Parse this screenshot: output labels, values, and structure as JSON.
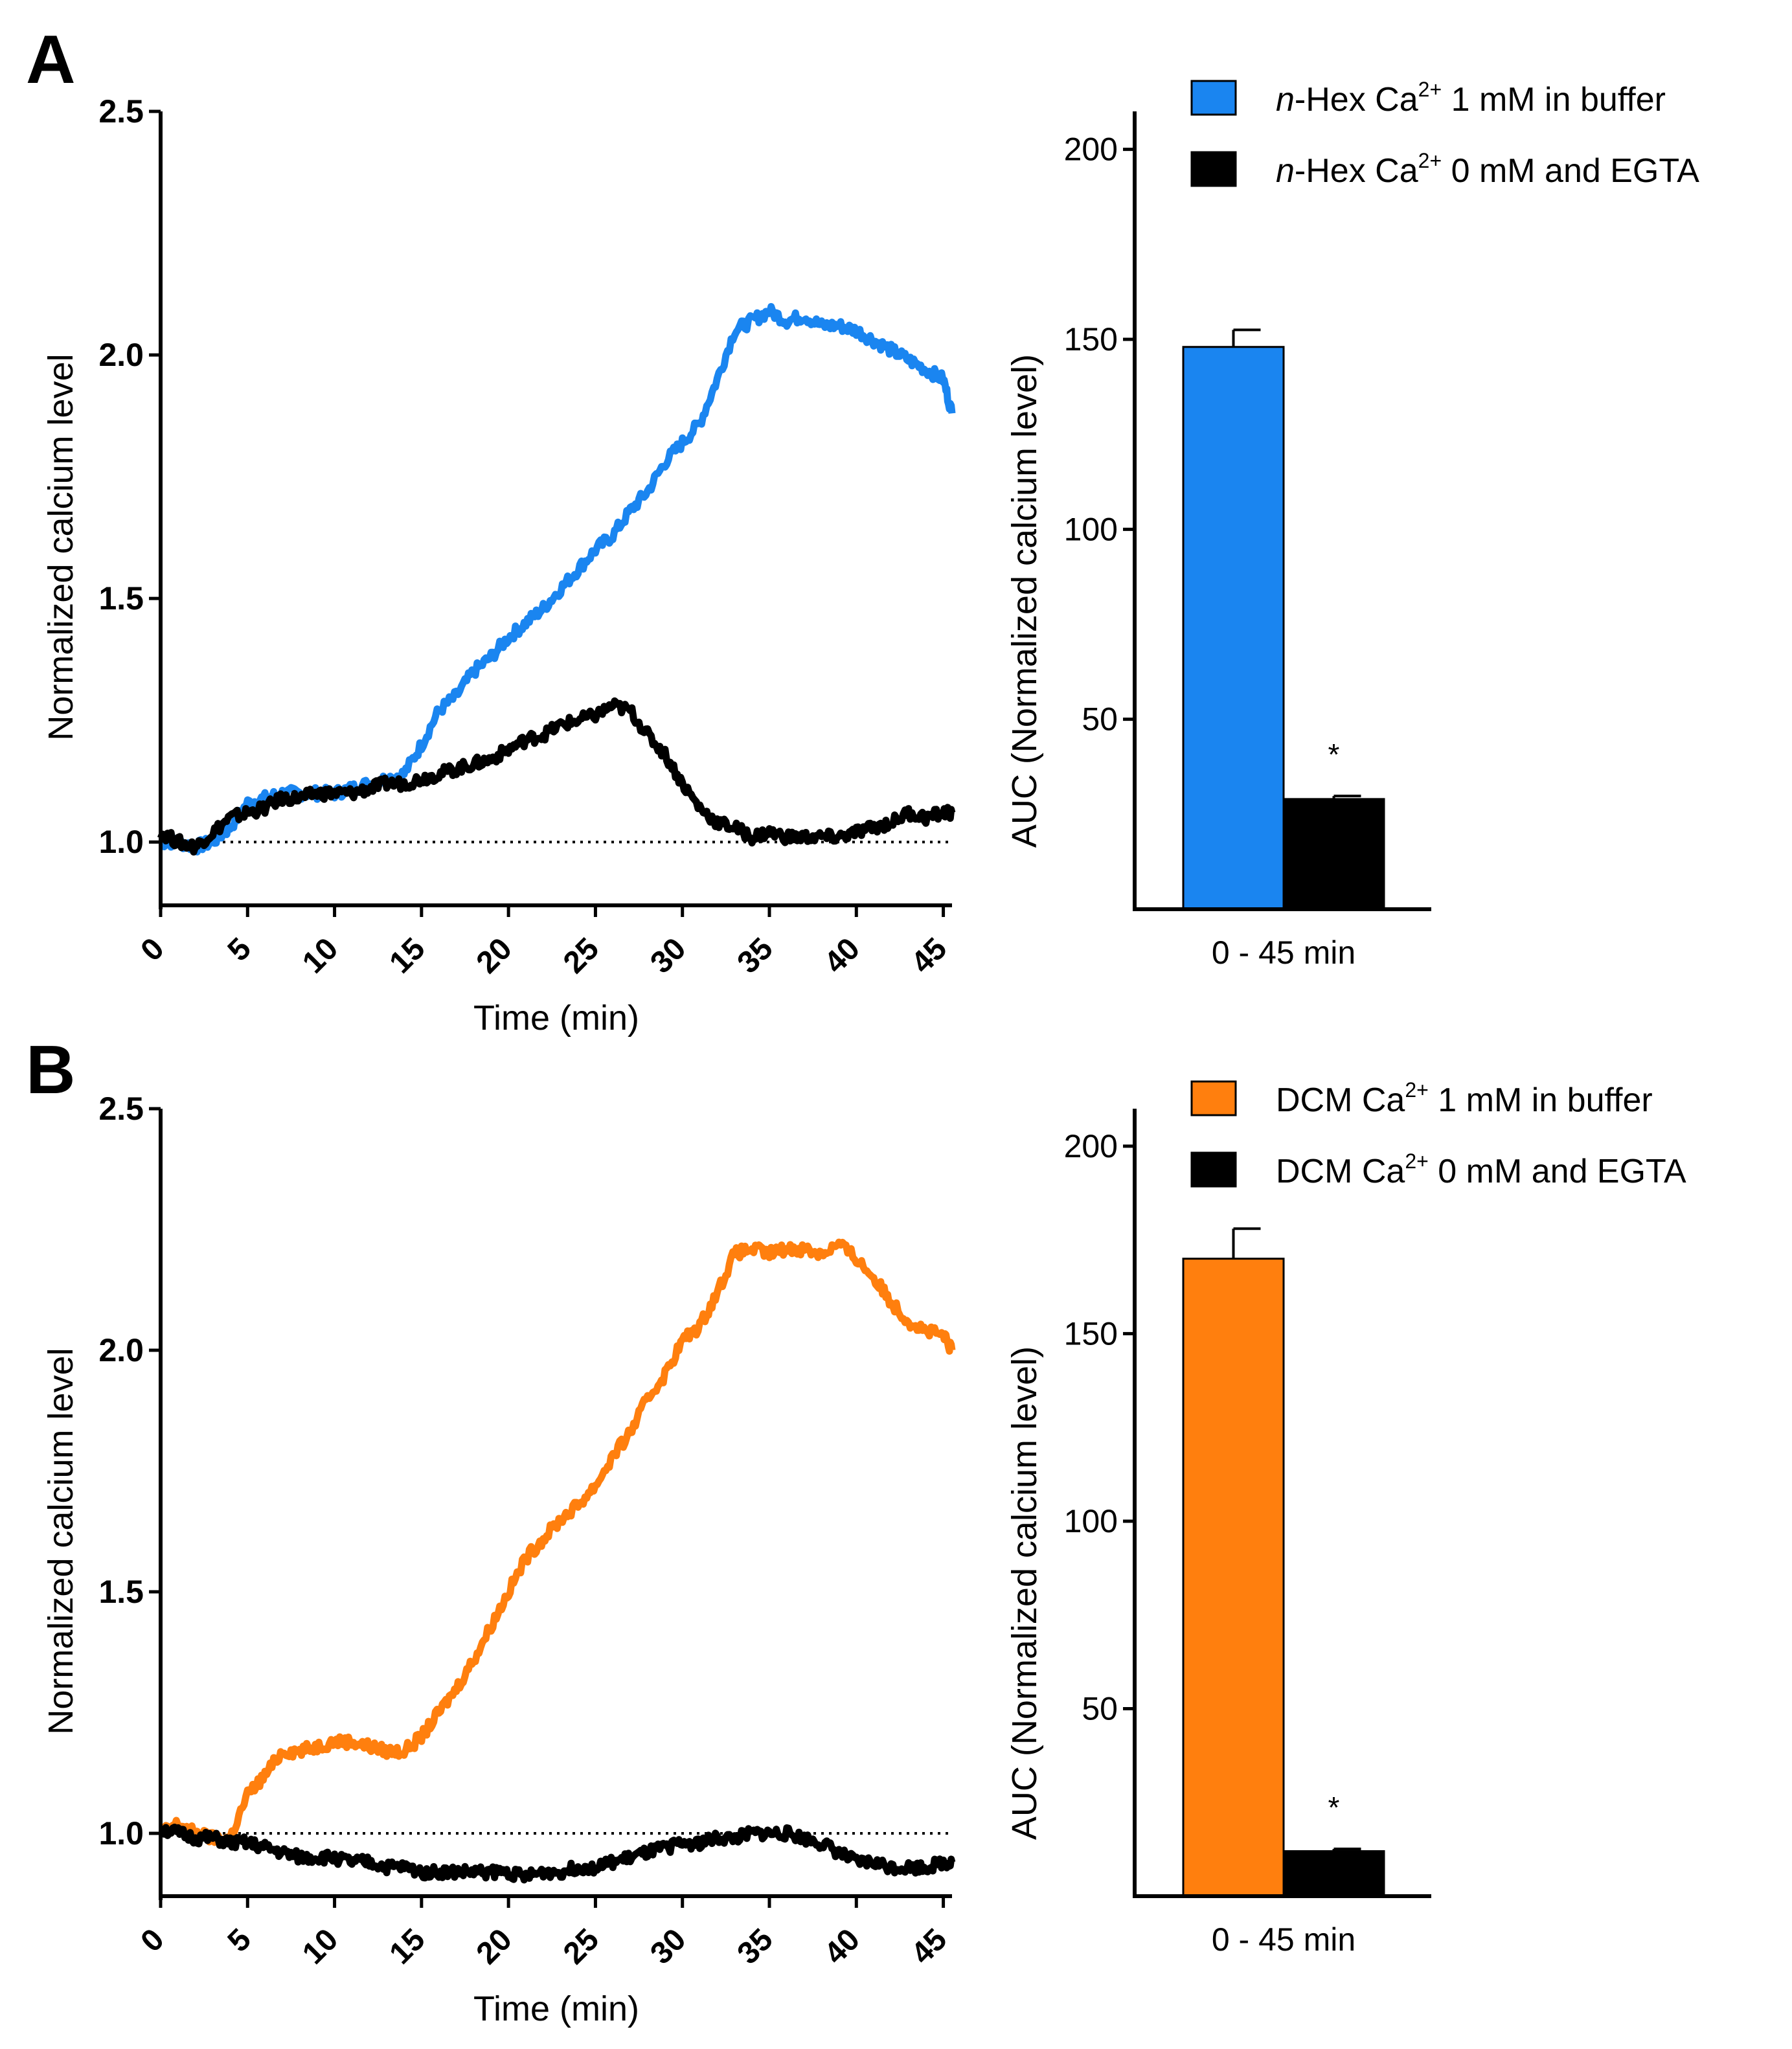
{
  "figure": {
    "panels": [
      {
        "letter": "A",
        "trace_ylabel": "Normalized calcium level",
        "trace_xlabel": "Time (min)",
        "auc_ylabel": "AUC  (Normalized calcium level)",
        "auc_xlabel": "0 - 45 min",
        "legend": [
          {
            "prefix_italic": "n",
            "text1": "-Hex Ca",
            "sup": "2+",
            "text2": " 1 mM in buffer"
          },
          {
            "prefix_italic": "n",
            "text1": "-Hex Ca",
            "sup": "2+",
            "text2": " 0 mM and EGTA"
          }
        ],
        "significance": "*"
      },
      {
        "letter": "B",
        "trace_ylabel": "Normalized calcium level",
        "trace_xlabel": "Time (min)",
        "auc_ylabel": "AUC  (Normalized calcium level)",
        "auc_xlabel": "0 - 45 min",
        "legend": [
          {
            "prefix_italic": "",
            "text1": "DCM Ca",
            "sup": "2+",
            "text2": " 1 mM in buffer"
          },
          {
            "prefix_italic": "",
            "text1": "DCM Ca",
            "sup": "2+",
            "text2": " 0 mM and EGTA"
          }
        ],
        "significance": "*"
      }
    ],
    "colors": {
      "hex": "#1a85f0",
      "dcm": "#ff7f0e",
      "control": "#000000"
    }
  },
  "chart_data": [
    {
      "id": "A-trace",
      "type": "line",
      "title": "",
      "xlabel": "Time (min)",
      "ylabel": "Normalized calcium level",
      "xlim": [
        0,
        45.5
      ],
      "ylim": [
        0.87,
        2.5
      ],
      "xticks": [
        0,
        5,
        10,
        15,
        20,
        25,
        30,
        35,
        40,
        45
      ],
      "yticks": [
        1.0,
        1.5,
        2.0,
        2.5
      ],
      "yticklabels": [
        "1.0",
        "1.5",
        "2.0",
        "2.5"
      ],
      "reference_line": 1.0,
      "series": [
        {
          "name": "n-Hex Ca2+ 1 mM in buffer",
          "color": "#1a85f0",
          "x": [
            0,
            1,
            2,
            3,
            4,
            5,
            6,
            7,
            8,
            9,
            10,
            11,
            12,
            13,
            14,
            15,
            16,
            17,
            18,
            19,
            20,
            21,
            22,
            23,
            24,
            25,
            26,
            27,
            28,
            29,
            30,
            31,
            32,
            33,
            34,
            35,
            36,
            37,
            38,
            39,
            40,
            41,
            42,
            43,
            44,
            45,
            45.5
          ],
          "y": [
            1.0,
            1.0,
            0.99,
            1.0,
            1.03,
            1.08,
            1.09,
            1.1,
            1.1,
            1.1,
            1.1,
            1.11,
            1.12,
            1.13,
            1.14,
            1.2,
            1.27,
            1.3,
            1.35,
            1.38,
            1.42,
            1.45,
            1.48,
            1.52,
            1.56,
            1.6,
            1.63,
            1.68,
            1.72,
            1.78,
            1.82,
            1.86,
            1.95,
            2.05,
            2.07,
            2.09,
            2.07,
            2.08,
            2.06,
            2.06,
            2.05,
            2.03,
            2.01,
            1.99,
            1.97,
            1.95,
            1.88
          ]
        },
        {
          "name": "n-Hex Ca2+ 0 mM and EGTA",
          "color": "#000000",
          "x": [
            0,
            1,
            2,
            3,
            4,
            5,
            6,
            7,
            8,
            9,
            10,
            11,
            12,
            13,
            14,
            15,
            16,
            17,
            18,
            19,
            20,
            21,
            22,
            23,
            24,
            25,
            26,
            27,
            28,
            29,
            30,
            31,
            32,
            33,
            34,
            35,
            36,
            37,
            38,
            39,
            40,
            41,
            42,
            43,
            44,
            45,
            45.5
          ],
          "y": [
            1.02,
            1.0,
            0.99,
            1.02,
            1.05,
            1.06,
            1.07,
            1.09,
            1.09,
            1.1,
            1.1,
            1.1,
            1.11,
            1.12,
            1.12,
            1.13,
            1.14,
            1.15,
            1.16,
            1.17,
            1.19,
            1.21,
            1.22,
            1.24,
            1.25,
            1.26,
            1.28,
            1.27,
            1.22,
            1.18,
            1.12,
            1.07,
            1.04,
            1.03,
            1.01,
            1.02,
            1.01,
            1.01,
            1.01,
            1.01,
            1.02,
            1.03,
            1.04,
            1.06,
            1.05,
            1.06,
            1.06
          ]
        }
      ]
    },
    {
      "id": "A-auc",
      "type": "bar",
      "title": "",
      "xlabel": "0 - 45 min",
      "ylabel": "AUC  (Normalized calcium level)",
      "ylim": [
        0,
        210
      ],
      "yticks": [
        50,
        100,
        150,
        200
      ],
      "series": [
        {
          "name": "n-Hex Ca2+ 1 mM in buffer",
          "color": "#1a85f0",
          "value": 148,
          "error": 4.5
        },
        {
          "name": "n-Hex Ca2+ 0 mM and EGTA",
          "color": "#000000",
          "value": 29,
          "error": 0.8,
          "significant": true
        }
      ]
    },
    {
      "id": "B-trace",
      "type": "line",
      "title": "",
      "xlabel": "Time (min)",
      "ylabel": "Normalized calcium level",
      "xlim": [
        0,
        45.5
      ],
      "ylim": [
        0.87,
        2.5
      ],
      "xticks": [
        0,
        5,
        10,
        15,
        20,
        25,
        30,
        35,
        40,
        45
      ],
      "yticks": [
        1.0,
        1.5,
        2.0,
        2.5
      ],
      "yticklabels": [
        "1.0",
        "1.5",
        "2.0",
        "2.5"
      ],
      "reference_line": 1.0,
      "series": [
        {
          "name": "DCM Ca2+ 1 mM in buffer",
          "color": "#ff7f0e",
          "x": [
            0,
            1,
            2,
            3,
            4,
            5,
            6,
            7,
            8,
            9,
            10,
            11,
            12,
            13,
            14,
            15,
            16,
            17,
            18,
            19,
            20,
            21,
            22,
            23,
            24,
            25,
            26,
            27,
            28,
            29,
            30,
            31,
            32,
            33,
            34,
            35,
            36,
            37,
            38,
            39,
            40,
            41,
            42,
            43,
            44,
            45,
            45.5
          ],
          "y": [
            1.0,
            1.02,
            1.0,
            0.99,
            0.99,
            1.08,
            1.12,
            1.17,
            1.17,
            1.18,
            1.19,
            1.19,
            1.18,
            1.17,
            1.17,
            1.2,
            1.25,
            1.3,
            1.36,
            1.43,
            1.5,
            1.57,
            1.61,
            1.65,
            1.68,
            1.72,
            1.78,
            1.83,
            1.9,
            1.95,
            2.02,
            2.05,
            2.12,
            2.2,
            2.21,
            2.2,
            2.21,
            2.21,
            2.2,
            2.22,
            2.19,
            2.15,
            2.1,
            2.06,
            2.04,
            2.03,
            2.0
          ]
        },
        {
          "name": "DCM Ca2+ 0 mM and EGTA",
          "color": "#000000",
          "x": [
            0,
            1,
            2,
            3,
            4,
            5,
            6,
            7,
            8,
            9,
            10,
            11,
            12,
            13,
            14,
            15,
            16,
            17,
            18,
            19,
            20,
            21,
            22,
            23,
            24,
            25,
            26,
            27,
            28,
            29,
            30,
            31,
            32,
            33,
            34,
            35,
            36,
            37,
            38,
            39,
            40,
            41,
            42,
            43,
            44,
            45,
            45.5
          ],
          "y": [
            1.01,
            1.0,
            0.99,
            0.99,
            0.98,
            0.98,
            0.97,
            0.96,
            0.95,
            0.95,
            0.95,
            0.94,
            0.94,
            0.93,
            0.93,
            0.92,
            0.92,
            0.92,
            0.92,
            0.92,
            0.92,
            0.91,
            0.92,
            0.92,
            0.93,
            0.93,
            0.94,
            0.95,
            0.96,
            0.97,
            0.98,
            0.98,
            0.99,
            0.99,
            1.0,
            1.0,
            1.0,
            0.99,
            0.98,
            0.96,
            0.94,
            0.94,
            0.93,
            0.93,
            0.93,
            0.94,
            0.94
          ]
        }
      ]
    },
    {
      "id": "B-auc",
      "type": "bar",
      "title": "",
      "xlabel": "0 - 45 min",
      "ylabel": "AUC  (Normalized calcium level)",
      "ylim": [
        0,
        210
      ],
      "yticks": [
        50,
        100,
        150,
        200
      ],
      "series": [
        {
          "name": "DCM Ca2+ 1 mM in buffer",
          "color": "#ff7f0e",
          "value": 170,
          "error": 8
        },
        {
          "name": "DCM Ca2+ 0 mM and EGTA",
          "color": "#000000",
          "value": 12,
          "error": 0.6,
          "significant": true
        }
      ]
    }
  ]
}
